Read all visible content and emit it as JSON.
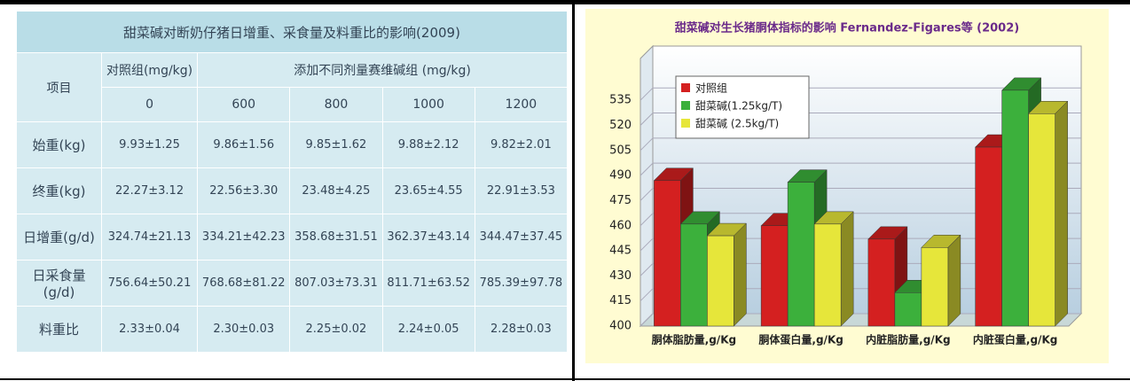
{
  "table": {
    "title": "甜菜碱对断奶仔猪日增重、采食量及料重比的影响(2009)",
    "header": {
      "item": "项目",
      "control": "对照组(mg/kg)",
      "treated": "添加不同剂量赛维碱组 (mg/kg)",
      "doses": [
        "0",
        "600",
        "800",
        "1000",
        "1200"
      ]
    },
    "rows": [
      [
        "始重(kg)",
        "9.93±1.25",
        "9.86±1.56",
        "9.85±1.62",
        "9.88±2.12",
        "9.82±2.01"
      ],
      [
        "终重(kg)",
        "22.27±3.12",
        "22.56±3.30",
        "23.48±4.25",
        "23.65±4.55",
        "22.91±3.53"
      ],
      [
        "日增重(g/d)",
        "324.74±21.13",
        "334.21±42.23",
        "358.68±31.51",
        "362.37±43.14",
        "344.47±37.45"
      ],
      [
        "日采食量(g/d)",
        "756.64±50.21",
        "768.68±81.22",
        "807.03±73.31",
        "811.71±63.52",
        "785.39±97.78"
      ],
      [
        "料重比",
        "2.33±0.04",
        "2.30±0.03",
        "2.25±0.02",
        "2.24±0.05",
        "2.28±0.03"
      ]
    ]
  },
  "chart_data": {
    "type": "bar3d",
    "title": "甜菜碱对生长猪胴体指标的影响 Fernandez-Figares等 (2002)",
    "categories": [
      "胴体脂肪量,g/Kg",
      "胴体蛋白量,g/Kg",
      "内脏脂肪量,g/Kg",
      "内脏蛋白量,g/Kg"
    ],
    "series": [
      {
        "name": "对照组",
        "color": "#d42020",
        "values": [
          487,
          460,
          452,
          507
        ]
      },
      {
        "name": "甜菜碱(1.25kg/T)",
        "color": "#3cb03c",
        "values": [
          461,
          486,
          420,
          541
        ]
      },
      {
        "name": "甜菜碱 (2.5kg/T)",
        "color": "#e6e63a",
        "values": [
          454,
          461,
          447,
          527
        ]
      }
    ],
    "ylim": [
      400,
      560
    ],
    "yticks": [
      400,
      415,
      430,
      445,
      460,
      475,
      490,
      505,
      520,
      535
    ],
    "grid": true,
    "legend": "upper-left"
  }
}
